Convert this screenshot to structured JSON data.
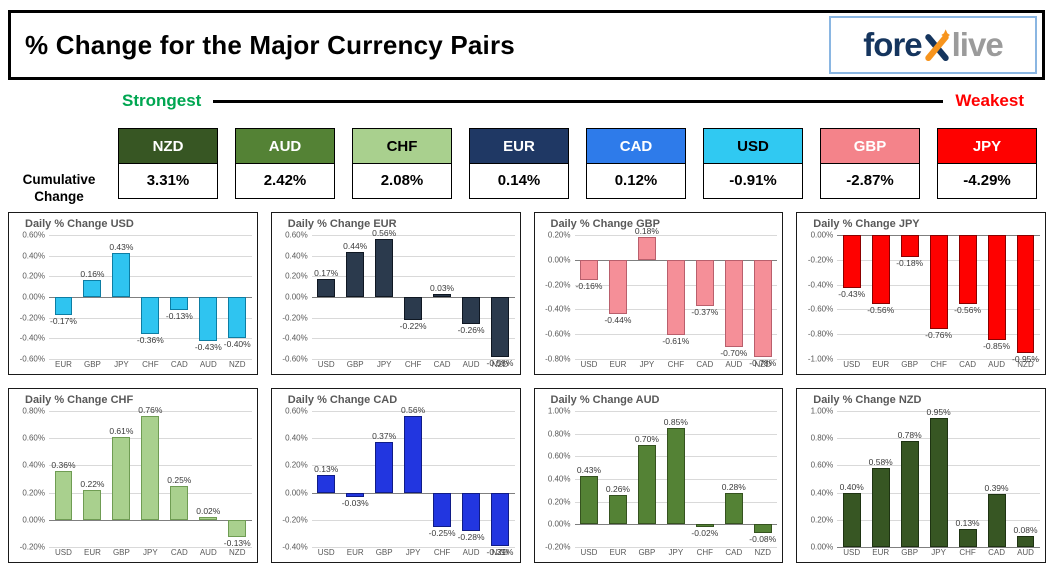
{
  "header": {
    "title": "% Change for the Major Currency Pairs",
    "logo": {
      "text_before_x": "fore",
      "x": "x",
      "text_after_x": "live",
      "navy_color": "#15355e",
      "gray_color": "#9b9b9b",
      "orange_color": "#f7941d",
      "border_color": "#8ab6e2"
    }
  },
  "scale": {
    "strongest": "Strongest",
    "weakest": "Weakest",
    "strongest_color": "#00a651",
    "weakest_color": "#ff0000"
  },
  "cumulative": {
    "label_line1": "Cumulative",
    "label_line2": "Change",
    "items": [
      {
        "code": "NZD",
        "value": "3.31%",
        "box_color": "#375623",
        "text_color": "#ffffff"
      },
      {
        "code": "AUD",
        "value": "2.42%",
        "box_color": "#548235",
        "text_color": "#ffffff"
      },
      {
        "code": "CHF",
        "value": "2.08%",
        "box_color": "#a9d08e",
        "text_color": "#000000"
      },
      {
        "code": "EUR",
        "value": "0.14%",
        "box_color": "#1f3864",
        "text_color": "#ffffff"
      },
      {
        "code": "CAD",
        "value": "0.12%",
        "box_color": "#2e7bea",
        "text_color": "#ffffff"
      },
      {
        "code": "USD",
        "value": "-0.91%",
        "box_color": "#30c9f2",
        "text_color": "#000000"
      },
      {
        "code": "GBP",
        "value": "-2.87%",
        "box_color": "#f4838a",
        "text_color": "#ffffff"
      },
      {
        "code": "JPY",
        "value": "-4.29%",
        "box_color": "#fe0100",
        "text_color": "#ffffff"
      }
    ]
  },
  "chart_data": [
    {
      "type": "bar",
      "currency": "USD",
      "title": "Daily % Change USD",
      "categories": [
        "EUR",
        "GBP",
        "JPY",
        "CHF",
        "CAD",
        "AUD",
        "NZD"
      ],
      "values": [
        -0.17,
        0.16,
        0.43,
        -0.36,
        -0.13,
        -0.43,
        -0.4
      ],
      "ymax": 0.6,
      "ymin": -0.6,
      "yticks": [
        0.6,
        0.4,
        0.2,
        0,
        -0.2,
        -0.4,
        -0.6
      ],
      "bar_color": "#2fc4f0",
      "bar_border": "#0d7da3"
    },
    {
      "type": "bar",
      "currency": "EUR",
      "title": "Daily % Change EUR",
      "categories": [
        "USD",
        "GBP",
        "JPY",
        "CHF",
        "CAD",
        "AUD",
        "NZD"
      ],
      "values": [
        0.17,
        0.44,
        0.56,
        -0.22,
        0.03,
        -0.26,
        -0.58
      ],
      "ymax": 0.6,
      "ymin": -0.6,
      "yticks": [
        0.6,
        0.4,
        0.2,
        0,
        -0.2,
        -0.4,
        -0.6
      ],
      "bar_color": "#2b3a4d",
      "bar_border": "#0f1722"
    },
    {
      "type": "bar",
      "currency": "GBP",
      "title": "Daily % Change GBP",
      "categories": [
        "USD",
        "EUR",
        "JPY",
        "CHF",
        "CAD",
        "AUD",
        "NZD"
      ],
      "values": [
        -0.16,
        -0.44,
        0.18,
        -0.61,
        -0.37,
        -0.7,
        -0.78
      ],
      "ymax": 0.2,
      "ymin": -0.8,
      "yticks": [
        0.2,
        0,
        -0.2,
        -0.4,
        -0.6,
        -0.8
      ],
      "bar_color": "#f58f98",
      "bar_border": "#b95f6c"
    },
    {
      "type": "bar",
      "currency": "JPY",
      "title": "Daily % Change JPY",
      "categories": [
        "USD",
        "EUR",
        "GBP",
        "CHF",
        "CAD",
        "AUD",
        "NZD"
      ],
      "values": [
        -0.43,
        -0.56,
        -0.18,
        -0.76,
        -0.56,
        -0.85,
        -0.95
      ],
      "ymax": 0,
      "ymin": -1.0,
      "yticks": [
        0,
        -0.2,
        -0.4,
        -0.6,
        -0.8,
        -1.0
      ],
      "bar_color": "#fe0100",
      "bar_border": "#8a0000"
    },
    {
      "type": "bar",
      "currency": "CHF",
      "title": "Daily % Change CHF",
      "categories": [
        "USD",
        "EUR",
        "GBP",
        "JPY",
        "CAD",
        "AUD",
        "NZD"
      ],
      "values": [
        0.36,
        0.22,
        0.61,
        0.76,
        0.25,
        0.02,
        -0.13
      ],
      "ymax": 0.8,
      "ymin": -0.2,
      "yticks": [
        0.8,
        0.6,
        0.4,
        0.2,
        0,
        -0.2
      ],
      "bar_color": "#a9d08e",
      "bar_border": "#6f9c53"
    },
    {
      "type": "bar",
      "currency": "CAD",
      "title": "Daily % Change CAD",
      "categories": [
        "USD",
        "EUR",
        "GBP",
        "JPY",
        "CHF",
        "AUD",
        "NZD"
      ],
      "values": [
        0.13,
        -0.03,
        0.37,
        0.56,
        -0.25,
        -0.28,
        -0.39
      ],
      "ymax": 0.6,
      "ymin": -0.4,
      "yticks": [
        0.6,
        0.4,
        0.2,
        0,
        -0.2,
        -0.4
      ],
      "bar_color": "#2236e0",
      "bar_border": "#101c86"
    },
    {
      "type": "bar",
      "currency": "AUD",
      "title": "Daily % Change AUD",
      "categories": [
        "USD",
        "EUR",
        "GBP",
        "JPY",
        "CHF",
        "CAD",
        "NZD"
      ],
      "values": [
        0.43,
        0.26,
        0.7,
        0.85,
        -0.02,
        0.28,
        -0.08
      ],
      "ymax": 1.0,
      "ymin": -0.2,
      "yticks": [
        1.0,
        0.8,
        0.6,
        0.4,
        0.2,
        0,
        -0.2
      ],
      "bar_color": "#548235",
      "bar_border": "#35521f"
    },
    {
      "type": "bar",
      "currency": "NZD",
      "title": "Daily % Change NZD",
      "categories": [
        "USD",
        "EUR",
        "GBP",
        "JPY",
        "CHF",
        "CAD",
        "AUD"
      ],
      "values": [
        0.4,
        0.58,
        0.78,
        0.95,
        0.13,
        0.39,
        0.08
      ],
      "ymax": 1.0,
      "ymin": 0,
      "yticks": [
        1.0,
        0.8,
        0.6,
        0.4,
        0.2,
        0
      ],
      "bar_color": "#375623",
      "bar_border": "#1e3312"
    }
  ]
}
